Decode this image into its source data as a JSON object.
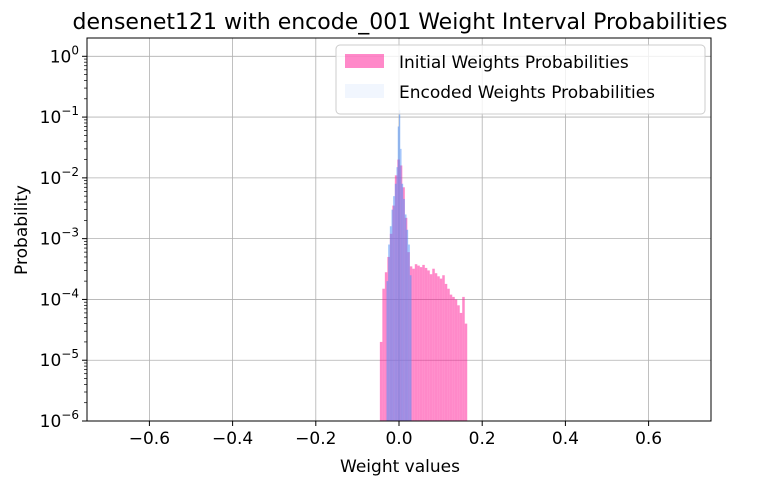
{
  "chart_data": {
    "type": "bar",
    "title": "densenet121 with encode_001 Weight Interval Probabilities",
    "xlabel": "Weight values",
    "ylabel": "Probability",
    "xlim": [
      -0.75,
      0.75
    ],
    "ylim": [
      1e-06,
      2.0
    ],
    "yscale": "log",
    "grid": true,
    "legend_position": "upper right",
    "xticks": [
      -0.6,
      -0.4,
      -0.2,
      0.0,
      0.2,
      0.4,
      0.6
    ],
    "xtick_labels": [
      "−0.6",
      "−0.4",
      "−0.2",
      "0.0",
      "0.2",
      "0.4",
      "0.6"
    ],
    "yticks": [
      {
        "value": 1e-06,
        "base": "10",
        "exp": "−6"
      },
      {
        "value": 1e-05,
        "base": "10",
        "exp": "−5"
      },
      {
        "value": 0.0001,
        "base": "10",
        "exp": "−4"
      },
      {
        "value": 0.001,
        "base": "10",
        "exp": "−3"
      },
      {
        "value": 0.01,
        "base": "10",
        "exp": "−2"
      },
      {
        "value": 0.1,
        "base": "10",
        "exp": "−1"
      },
      {
        "value": 1,
        "base": "10",
        "exp": "0"
      }
    ],
    "series": [
      {
        "name": "Initial Weights Probabilities",
        "color": "#ff1493",
        "alpha": 0.5,
        "bins": [
          {
            "x0": -0.046,
            "x1": -0.04,
            "y": 2e-05
          },
          {
            "x0": -0.04,
            "x1": -0.034,
            "y": 0.00015
          },
          {
            "x0": -0.034,
            "x1": -0.028,
            "y": 0.00028
          },
          {
            "x0": -0.028,
            "x1": -0.022,
            "y": 0.0005
          },
          {
            "x0": -0.022,
            "x1": -0.016,
            "y": 0.0012
          },
          {
            "x0": -0.016,
            "x1": -0.01,
            "y": 0.0035
          },
          {
            "x0": -0.01,
            "x1": -0.004,
            "y": 0.011
          },
          {
            "x0": -0.004,
            "x1": 0.002,
            "y": 0.02
          },
          {
            "x0": 0.002,
            "x1": 0.008,
            "y": 0.016
          },
          {
            "x0": 0.008,
            "x1": 0.014,
            "y": 0.007
          },
          {
            "x0": 0.014,
            "x1": 0.02,
            "y": 0.0022
          },
          {
            "x0": 0.02,
            "x1": 0.026,
            "y": 0.0006
          },
          {
            "x0": 0.026,
            "x1": 0.032,
            "y": 0.00035
          },
          {
            "x0": 0.032,
            "x1": 0.038,
            "y": 0.00032
          },
          {
            "x0": 0.038,
            "x1": 0.044,
            "y": 0.00038
          },
          {
            "x0": 0.044,
            "x1": 0.05,
            "y": 0.00036
          },
          {
            "x0": 0.05,
            "x1": 0.056,
            "y": 0.00034
          },
          {
            "x0": 0.056,
            "x1": 0.062,
            "y": 0.00037
          },
          {
            "x0": 0.062,
            "x1": 0.068,
            "y": 0.00033
          },
          {
            "x0": 0.068,
            "x1": 0.074,
            "y": 0.0003
          },
          {
            "x0": 0.074,
            "x1": 0.08,
            "y": 0.00026
          },
          {
            "x0": 0.08,
            "x1": 0.086,
            "y": 0.00032
          },
          {
            "x0": 0.086,
            "x1": 0.092,
            "y": 0.00027
          },
          {
            "x0": 0.092,
            "x1": 0.098,
            "y": 0.00024
          },
          {
            "x0": 0.098,
            "x1": 0.104,
            "y": 0.00022
          },
          {
            "x0": 0.104,
            "x1": 0.11,
            "y": 0.00025
          },
          {
            "x0": 0.11,
            "x1": 0.116,
            "y": 0.00018
          },
          {
            "x0": 0.116,
            "x1": 0.122,
            "y": 0.00015
          },
          {
            "x0": 0.122,
            "x1": 0.128,
            "y": 0.00012
          },
          {
            "x0": 0.128,
            "x1": 0.134,
            "y": 0.00011
          },
          {
            "x0": 0.134,
            "x1": 0.14,
            "y": 0.0001
          },
          {
            "x0": 0.14,
            "x1": 0.146,
            "y": 8e-05
          },
          {
            "x0": 0.146,
            "x1": 0.152,
            "y": 6e-05
          },
          {
            "x0": 0.152,
            "x1": 0.158,
            "y": 0.00011
          },
          {
            "x0": 0.158,
            "x1": 0.164,
            "y": 4e-05
          }
        ]
      },
      {
        "name": "Encoded Weights Probabilities",
        "color": "#4f8ff7",
        "alpha": 0.55,
        "bins": [
          {
            "x0": -0.03,
            "x1": -0.026,
            "y": 0.0002
          },
          {
            "x0": -0.026,
            "x1": -0.022,
            "y": 0.0008
          },
          {
            "x0": -0.022,
            "x1": -0.018,
            "y": 0.0016
          },
          {
            "x0": -0.018,
            "x1": -0.014,
            "y": 0.003
          },
          {
            "x0": -0.014,
            "x1": -0.01,
            "y": 0.005
          },
          {
            "x0": -0.01,
            "x1": -0.006,
            "y": 0.008
          },
          {
            "x0": -0.006,
            "x1": -0.003,
            "y": 0.015
          },
          {
            "x0": -0.003,
            "x1": 0.0,
            "y": 0.07
          },
          {
            "x0": 0.0,
            "x1": 0.003,
            "y": 0.13
          },
          {
            "x0": 0.003,
            "x1": 0.006,
            "y": 0.03
          },
          {
            "x0": 0.006,
            "x1": 0.01,
            "y": 0.008
          },
          {
            "x0": 0.01,
            "x1": 0.014,
            "y": 0.0045
          },
          {
            "x0": 0.014,
            "x1": 0.018,
            "y": 0.0025
          },
          {
            "x0": 0.018,
            "x1": 0.022,
            "y": 0.0014
          },
          {
            "x0": 0.022,
            "x1": 0.026,
            "y": 0.0008
          },
          {
            "x0": 0.026,
            "x1": 0.03,
            "y": 0.00025
          }
        ]
      }
    ]
  }
}
